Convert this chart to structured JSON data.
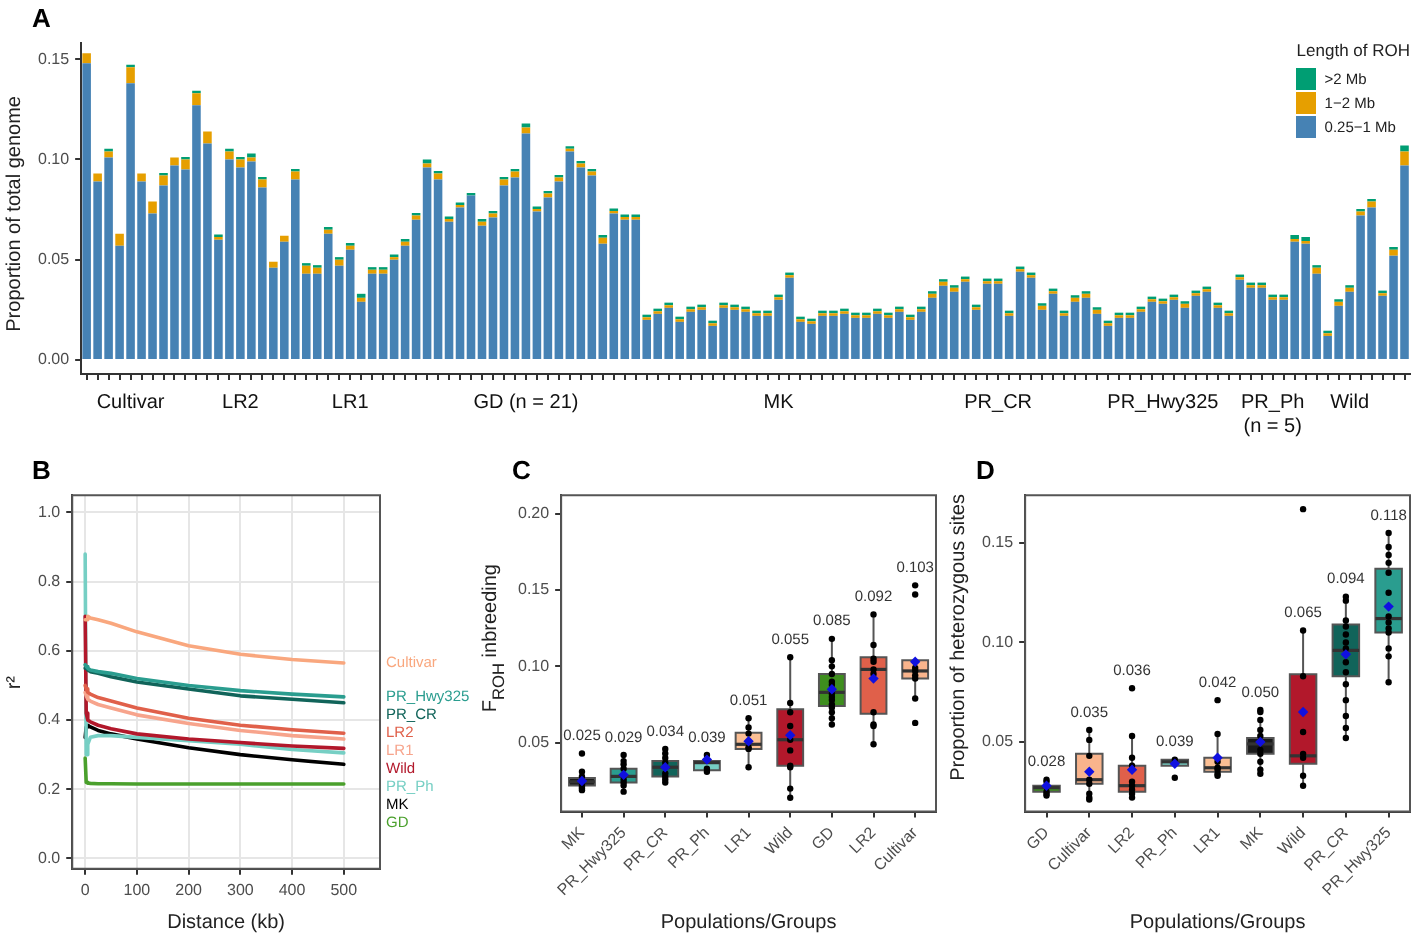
{
  "chart_data": [
    {
      "type": "bar",
      "title": "A",
      "ylabel": "Proportion of total genome",
      "stacked": true,
      "legend": "top right",
      "legend_title": "Length of ROH",
      "grid": false,
      "ylim": [
        -0.007,
        0.158
      ],
      "yticks": [
        {
          "value": 0,
          "label": "0.00"
        },
        0.05,
        {
          "value": 0.1,
          "label": "0.10"
        },
        0.15
      ],
      "categories": [
        null,
        null,
        null,
        null,
        "Cultivar",
        null,
        null,
        null,
        null,
        null,
        null,
        null,
        null,
        null,
        "LR2",
        null,
        null,
        null,
        null,
        null,
        null,
        null,
        null,
        null,
        "LR1",
        null,
        null,
        null,
        null,
        null,
        null,
        null,
        null,
        null,
        null,
        null,
        null,
        null,
        null,
        null,
        "GD (n = 21)",
        null,
        null,
        null,
        null,
        null,
        null,
        null,
        null,
        null,
        null,
        null,
        null,
        null,
        null,
        null,
        null,
        null,
        null,
        null,
        null,
        null,
        null,
        "MK",
        null,
        null,
        null,
        null,
        null,
        null,
        null,
        null,
        null,
        null,
        null,
        null,
        null,
        null,
        null,
        null,
        null,
        null,
        null,
        "PR_CR",
        null,
        null,
        null,
        null,
        null,
        null,
        null,
        null,
        null,
        null,
        null,
        null,
        null,
        null,
        "PR_Hwy325",
        null,
        null,
        null,
        null,
        null,
        null,
        null,
        null,
        null,
        "PR_Ph\n(n = 5)",
        null,
        null,
        null,
        null,
        null,
        null,
        "Wild",
        null,
        null,
        null,
        null,
        null
      ],
      "series": [
        {
          "name": "0.25−1 Mb",
          "color": "#4682b4",
          "values": [
            0.148,
            0.089,
            0.101,
            0.057,
            0.138,
            0.089,
            0.073,
            0.087,
            0.097,
            0.095,
            0.127,
            0.108,
            0.06,
            0.1,
            0.096,
            0.099,
            0.086,
            0.046,
            0.059,
            0.09,
            0.043,
            0.043,
            0.063,
            0.047,
            0.055,
            0.029,
            0.043,
            0.043,
            0.05,
            0.057,
            0.07,
            0.096,
            0.09,
            0.069,
            0.076,
            0.082,
            0.067,
            0.071,
            0.087,
            0.091,
            0.113,
            0.074,
            0.081,
            0.089,
            0.104,
            0.096,
            0.092,
            0.058,
            0.073,
            0.07,
            0.07,
            0.02,
            0.023,
            0.026,
            0.019,
            0.024,
            0.025,
            0.017,
            0.026,
            0.025,
            0.024,
            0.022,
            0.022,
            0.03,
            0.041,
            0.019,
            0.018,
            0.022,
            0.022,
            0.023,
            0.021,
            0.021,
            0.023,
            0.021,
            0.024,
            0.02,
            0.024,
            0.031,
            0.037,
            0.034,
            0.039,
            0.025,
            0.038,
            0.038,
            0.022,
            0.044,
            0.041,
            0.025,
            0.033,
            0.022,
            0.029,
            0.031,
            0.023,
            0.017,
            0.021,
            0.021,
            0.024,
            0.029,
            0.028,
            0.03,
            0.026,
            0.032,
            0.034,
            0.026,
            0.022,
            0.04,
            0.036,
            0.036,
            0.03,
            0.03,
            0.059,
            0.058,
            0.043,
            0.012,
            0.027,
            0.034,
            0.072,
            0.076,
            0.032,
            0.052,
            0.097
          ]
        },
        {
          "name": "1−2 Mb",
          "color": "#e69f00",
          "values": [
            0.005,
            0.004,
            0.003,
            0.006,
            0.008,
            0.004,
            0.006,
            0.005,
            0.004,
            0.005,
            0.006,
            0.006,
            0.001,
            0.004,
            0.004,
            0.002,
            0.004,
            0.003,
            0.003,
            0.004,
            0.004,
            0.003,
            0.002,
            0.003,
            0.002,
            0.002,
            0.002,
            0.002,
            0.001,
            0.002,
            0.002,
            0.002,
            0.003,
            0.001,
            0.001,
            0,
            0.002,
            0.002,
            0.003,
            0.003,
            0.003,
            0.001,
            0.002,
            0.002,
            0.001,
            0.002,
            0.002,
            0.003,
            0.001,
            0.001,
            0.001,
            0.001,
            0.001,
            0.001,
            0.001,
            0.001,
            0.001,
            0.001,
            0.001,
            0.001,
            0.001,
            0.001,
            0.001,
            0.001,
            0.001,
            0.001,
            0.001,
            0.001,
            0.001,
            0.001,
            0.001,
            0.001,
            0.001,
            0.001,
            0.001,
            0.001,
            0.001,
            0.002,
            0.002,
            0.002,
            0.001,
            0.001,
            0.001,
            0.001,
            0.001,
            0.001,
            0.001,
            0.002,
            0.001,
            0.001,
            0.002,
            0.002,
            0.002,
            0.001,
            0.001,
            0.001,
            0.001,
            0.001,
            0.001,
            0.001,
            0.002,
            0.001,
            0.001,
            0.001,
            0.001,
            0.001,
            0.001,
            0.001,
            0.001,
            0.001,
            0.001,
            0.001,
            0.003,
            0.001,
            0.002,
            0.002,
            0.002,
            0.003,
            0.001,
            0.003,
            0.007
          ]
        },
        {
          "name": ">2 Mb",
          "color": "#009e73",
          "values": [
            0,
            0,
            0.001,
            0,
            0.001,
            0,
            0,
            0.001,
            0,
            0.001,
            0.001,
            0,
            0.001,
            0.001,
            0.001,
            0.002,
            0.001,
            0,
            0,
            0.001,
            0.001,
            0.001,
            0.001,
            0.001,
            0.001,
            0.002,
            0.001,
            0.001,
            0.001,
            0.001,
            0.001,
            0.002,
            0.001,
            0.001,
            0.001,
            0.001,
            0.001,
            0.001,
            0.001,
            0.001,
            0.002,
            0.001,
            0.001,
            0.001,
            0.001,
            0.001,
            0.001,
            0.001,
            0.001,
            0.001,
            0.001,
            0.001,
            0.001,
            0.001,
            0.001,
            0.001,
            0.001,
            0.001,
            0.001,
            0.001,
            0.001,
            0.001,
            0.001,
            0.001,
            0.001,
            0.001,
            0.001,
            0.001,
            0.001,
            0.001,
            0.001,
            0.001,
            0.001,
            0.001,
            0.001,
            0.001,
            0.001,
            0.001,
            0.001,
            0.001,
            0.001,
            0.001,
            0.001,
            0.001,
            0.001,
            0.001,
            0.001,
            0.001,
            0.001,
            0.001,
            0.001,
            0.001,
            0.001,
            0.001,
            0.001,
            0.001,
            0.001,
            0.001,
            0.001,
            0.001,
            0.001,
            0.001,
            0.001,
            0.001,
            0.001,
            0.001,
            0.001,
            0.001,
            0.001,
            0.001,
            0.002,
            0.002,
            0.001,
            0.001,
            0.001,
            0.001,
            0.001,
            0.001,
            0.001,
            0.001,
            0.003
          ]
        }
      ]
    },
    {
      "type": "line",
      "title": "B",
      "xlabel": "Distance (kb)",
      "ylabel": "r²",
      "grid": true,
      "xlim": [
        -25,
        570
      ],
      "xticks": [
        0,
        100,
        200,
        300,
        400,
        500
      ],
      "ylim": [
        -0.03,
        1.05
      ],
      "yticks": [
        {
          "value": 0,
          "label": "0.0"
        },
        0.2,
        0.4,
        0.6,
        0.8,
        {
          "value": 1,
          "label": "1.0"
        }
      ],
      "x": [
        0,
        2,
        5,
        10,
        25,
        50,
        100,
        200,
        300,
        400,
        500
      ],
      "series": [
        {
          "name": "Cultivar",
          "color": "#f9a77e",
          "values": [
            0.69,
            0.69,
            0.7,
            0.695,
            0.69,
            0.68,
            0.655,
            0.615,
            0.59,
            0.575,
            0.565
          ]
        },
        {
          "name": "PR_Hwy325",
          "color": "#2a9d8f",
          "values": [
            0.56,
            0.555,
            0.55,
            0.545,
            0.54,
            0.535,
            0.52,
            0.5,
            0.485,
            0.475,
            0.467
          ]
        },
        {
          "name": "PR_CR",
          "color": "#11645a",
          "values": [
            0.55,
            0.55,
            0.545,
            0.54,
            0.535,
            0.525,
            0.51,
            0.49,
            0.47,
            0.46,
            0.45
          ]
        },
        {
          "name": "LR2",
          "color": "#e0604a",
          "values": [
            0.5,
            0.49,
            0.48,
            0.475,
            0.465,
            0.455,
            0.435,
            0.405,
            0.385,
            0.372,
            0.362
          ]
        },
        {
          "name": "LR1",
          "color": "#f7a48c",
          "values": [
            0.48,
            0.47,
            0.46,
            0.455,
            0.445,
            0.435,
            0.415,
            0.39,
            0.37,
            0.355,
            0.345
          ]
        },
        {
          "name": "Wild",
          "color": "#b2182b",
          "values": [
            0.7,
            0.42,
            0.4,
            0.395,
            0.385,
            0.375,
            0.36,
            0.345,
            0.335,
            0.325,
            0.318
          ]
        },
        {
          "name": "PR_Ph",
          "color": "#76cfc4",
          "values": [
            0.88,
            0.3,
            0.33,
            0.35,
            0.355,
            0.355,
            0.35,
            0.34,
            0.33,
            0.315,
            0.305
          ]
        },
        {
          "name": "MK",
          "color": "#000000",
          "values": [
            0.35,
            0.38,
            0.385,
            0.38,
            0.37,
            0.36,
            0.345,
            0.32,
            0.3,
            0.285,
            0.272
          ]
        },
        {
          "name": "GD",
          "color": "#4aa02c",
          "values": [
            0.29,
            0.22,
            0.218,
            0.217,
            0.216,
            0.216,
            0.215,
            0.215,
            0.215,
            0.215,
            0.215
          ]
        }
      ]
    },
    {
      "type": "box",
      "title": "C",
      "xlabel": "Populations/Groups",
      "ylabel": "F$_{ROH}$ inbreeding",
      "marker": "circle",
      "categories": [
        "MK",
        "PR_Hwy325",
        "PR_CR",
        "PR_Ph",
        "LR1",
        "Wild",
        "GD",
        "LR2",
        "Cultivar"
      ],
      "ylim": [
        0.005,
        0.212
      ],
      "yticks": [
        0.05,
        {
          "value": 0.1,
          "label": "0.10"
        },
        0.15,
        {
          "value": 0.2,
          "label": "0.20"
        }
      ],
      "series": [
        {
          "type": "box",
          "colors": [
            "#1a1a1a",
            "#2a9d8f",
            "#11645a",
            "#76cfc4",
            "#fbbf94",
            "#b2182b",
            "#3e8e1e",
            "#e0604a",
            "#f9b48c"
          ],
          "boxes": [
            {
              "low": 0.019,
              "q1": 0.022,
              "median": 0.0245,
              "q3": 0.027,
              "high": 0.031
            },
            {
              "low": 0.018,
              "q1": 0.024,
              "median": 0.028,
              "q3": 0.033,
              "high": 0.042
            },
            {
              "low": 0.024,
              "q1": 0.028,
              "median": 0.034,
              "q3": 0.038,
              "high": 0.046
            },
            {
              "low": 0.031,
              "q1": 0.032,
              "median": 0.037,
              "q3": 0.038,
              "high": 0.038
            },
            {
              "low": 0.034,
              "q1": 0.046,
              "median": 0.049,
              "q3": 0.0565,
              "high": 0.066
            },
            {
              "low": 0.014,
              "q1": 0.035,
              "median": 0.052,
              "q3": 0.072,
              "high": 0.106
            },
            {
              "low": 0.062,
              "q1": 0.074,
              "median": 0.083,
              "q3": 0.095,
              "high": 0.118
            },
            {
              "low": 0.049,
              "q1": 0.069,
              "median": 0.098,
              "q3": 0.106,
              "high": 0.134
            },
            {
              "low": 0.079,
              "q1": 0.092,
              "median": 0.097,
              "q3": 0.104,
              "high": 0.105
            }
          ]
        },
        {
          "type": "scatter",
          "color": "#000000",
          "x": [
            "MK",
            "MK",
            "MK",
            "MK",
            "MK",
            "MK",
            "MK",
            "PR_Hwy325",
            "PR_Hwy325",
            "PR_Hwy325",
            "PR_Hwy325",
            "PR_Hwy325",
            "PR_Hwy325",
            "PR_Hwy325",
            "PR_Hwy325",
            "PR_CR",
            "PR_CR",
            "PR_CR",
            "PR_CR",
            "PR_CR",
            "PR_CR",
            "PR_CR",
            "PR_CR",
            "PR_Ph",
            "PR_Ph",
            "PR_Ph",
            "LR1",
            "LR1",
            "LR1",
            "LR1",
            "LR1",
            "LR1",
            "Wild",
            "Wild",
            "Wild",
            "Wild",
            "Wild",
            "Wild",
            "Wild",
            "Wild",
            "Wild",
            "Wild",
            "GD",
            "GD",
            "GD",
            "GD",
            "GD",
            "GD",
            "GD",
            "GD",
            "GD",
            "GD",
            "GD",
            "GD",
            "GD",
            "GD",
            "LR2",
            "LR2",
            "LR2",
            "LR2",
            "LR2",
            "LR2",
            "LR2",
            "LR2",
            "LR2",
            "LR2",
            "Cultivar",
            "Cultivar",
            "Cultivar",
            "Cultivar",
            "Cultivar",
            "Cultivar",
            "Cultivar",
            "Cultivar"
          ],
          "values": [
            0.043,
            0.031,
            0.028,
            0.022,
            0.021,
            0.02,
            0.019,
            0.042,
            0.038,
            0.036,
            0.033,
            0.026,
            0.024,
            0.022,
            0.018,
            0.046,
            0.043,
            0.04,
            0.037,
            0.03,
            0.028,
            0.026,
            0.024,
            0.042,
            0.033,
            0.031,
            0.066,
            0.06,
            0.056,
            0.047,
            0.046,
            0.034,
            0.106,
            0.076,
            0.07,
            0.061,
            0.052,
            0.045,
            0.035,
            0.034,
            0.02,
            0.014,
            0.118,
            0.104,
            0.1,
            0.095,
            0.09,
            0.088,
            0.082,
            0.08,
            0.078,
            0.075,
            0.073,
            0.07,
            0.066,
            0.062,
            0.134,
            0.114,
            0.105,
            0.103,
            0.098,
            0.095,
            0.07,
            0.062,
            0.061,
            0.049,
            0.153,
            0.147,
            0.099,
            0.097,
            0.094,
            0.092,
            0.079,
            0.063
          ]
        },
        {
          "type": "scatter",
          "marker": "diamond",
          "color": "#1010e0",
          "x": [
            "MK",
            "PR_Hwy325",
            "PR_CR",
            "PR_Ph",
            "LR1",
            "Wild",
            "GD",
            "LR2",
            "Cultivar"
          ],
          "values": [
            0.025,
            0.029,
            0.034,
            0.039,
            0.051,
            0.055,
            0.085,
            0.092,
            0.103
          ]
        }
      ],
      "annotations": [
        "0.025",
        "0.029",
        "0.034",
        "0.039",
        "0.051",
        "0.055",
        "0.085",
        "0.092",
        "0.103"
      ]
    },
    {
      "type": "box",
      "title": "D",
      "xlabel": "Populations/Groups",
      "ylabel": "Proportion of heterozygous sites",
      "marker": "circle",
      "categories": [
        "GD",
        "Cultivar",
        "LR2",
        "PR_Ph",
        "LR1",
        "MK",
        "Wild",
        "PR_CR",
        "PR_Hwy325"
      ],
      "ylim": [
        0.015,
        0.174
      ],
      "yticks": [
        0.05,
        {
          "value": 0.1,
          "label": "0.10"
        },
        0.15
      ],
      "series": [
        {
          "type": "box",
          "colors": [
            "#3e8e1e",
            "#f9b48c",
            "#e0604a",
            "#76cfc4",
            "#fbbf94",
            "#1a1a1a",
            "#b2182b",
            "#11645a",
            "#2a9d8f"
          ],
          "boxes": [
            {
              "low": 0.023,
              "q1": 0.025,
              "median": 0.027,
              "q3": 0.028,
              "high": 0.031
            },
            {
              "low": 0.021,
              "q1": 0.029,
              "median": 0.031,
              "q3": 0.044,
              "high": 0.056
            },
            {
              "low": 0.022,
              "q1": 0.025,
              "median": 0.028,
              "q3": 0.038,
              "high": 0.053
            },
            {
              "low": 0.038,
              "q1": 0.038,
              "median": 0.04,
              "q3": 0.041,
              "high": 0.041
            },
            {
              "low": 0.033,
              "q1": 0.035,
              "median": 0.037,
              "q3": 0.042,
              "high": 0.054
            },
            {
              "low": 0.034,
              "q1": 0.044,
              "median": 0.049,
              "q3": 0.052,
              "high": 0.061
            },
            {
              "low": 0.028,
              "q1": 0.039,
              "median": 0.043,
              "q3": 0.084,
              "high": 0.105
            },
            {
              "low": 0.052,
              "q1": 0.083,
              "median": 0.096,
              "q3": 0.109,
              "high": 0.123
            },
            {
              "low": 0.08,
              "q1": 0.105,
              "median": 0.112,
              "q3": 0.137,
              "high": 0.155
            }
          ]
        },
        {
          "type": "scatter",
          "color": "#000000",
          "x": [
            "GD",
            "GD",
            "GD",
            "GD",
            "GD",
            "Cultivar",
            "Cultivar",
            "Cultivar",
            "Cultivar",
            "Cultivar",
            "Cultivar",
            "Cultivar",
            "Cultivar",
            "LR2",
            "LR2",
            "LR2",
            "LR2",
            "LR2",
            "LR2",
            "LR2",
            "LR2",
            "LR2",
            "PR_Ph",
            "PR_Ph",
            "LR1",
            "LR1",
            "LR1",
            "LR1",
            "LR1",
            "LR1",
            "LR1",
            "MK",
            "MK",
            "MK",
            "MK",
            "MK",
            "MK",
            "MK",
            "MK",
            "MK",
            "MK",
            "Wild",
            "Wild",
            "Wild",
            "Wild",
            "Wild",
            "Wild",
            "Wild",
            "Wild",
            "PR_CR",
            "PR_CR",
            "PR_CR",
            "PR_CR",
            "PR_CR",
            "PR_CR",
            "PR_CR",
            "PR_CR",
            "PR_CR",
            "PR_CR",
            "PR_CR",
            "PR_CR",
            "PR_CR",
            "PR_CR",
            "PR_Hwy325",
            "PR_Hwy325",
            "PR_Hwy325",
            "PR_Hwy325",
            "PR_Hwy325",
            "PR_Hwy325",
            "PR_Hwy325",
            "PR_Hwy325",
            "PR_Hwy325",
            "PR_Hwy325",
            "PR_Hwy325",
            "PR_Hwy325",
            "PR_Hwy325"
          ],
          "values": [
            0.031,
            0.03,
            0.025,
            0.024,
            0.023,
            0.056,
            0.051,
            0.043,
            0.031,
            0.029,
            0.024,
            0.022,
            0.021,
            0.077,
            0.053,
            0.042,
            0.038,
            0.03,
            0.028,
            0.026,
            0.024,
            0.022,
            0.041,
            0.032,
            0.071,
            0.054,
            0.04,
            0.037,
            0.036,
            0.034,
            0.033,
            0.066,
            0.065,
            0.061,
            0.056,
            0.053,
            0.046,
            0.044,
            0.04,
            0.036,
            0.034,
            0.167,
            0.106,
            0.083,
            0.055,
            0.044,
            0.042,
            0.033,
            0.028,
            0.123,
            0.121,
            0.111,
            0.108,
            0.104,
            0.1,
            0.097,
            0.09,
            0.085,
            0.079,
            0.071,
            0.063,
            0.057,
            0.052,
            0.155,
            0.148,
            0.144,
            0.14,
            0.135,
            0.125,
            0.113,
            0.11,
            0.107,
            0.105,
            0.097,
            0.093,
            0.08
          ]
        },
        {
          "type": "scatter",
          "marker": "diamond",
          "color": "#1010e0",
          "x": [
            "GD",
            "Cultivar",
            "LR2",
            "PR_Ph",
            "LR1",
            "MK",
            "Wild",
            "PR_CR",
            "PR_Hwy325"
          ],
          "values": [
            0.028,
            0.035,
            0.036,
            0.039,
            0.042,
            0.05,
            0.065,
            0.094,
            0.118
          ]
        }
      ],
      "annotations": [
        "0.028",
        "0.035",
        "0.036",
        "0.039",
        "0.042",
        "0.050",
        "0.065",
        "0.094",
        "0.118"
      ]
    }
  ]
}
